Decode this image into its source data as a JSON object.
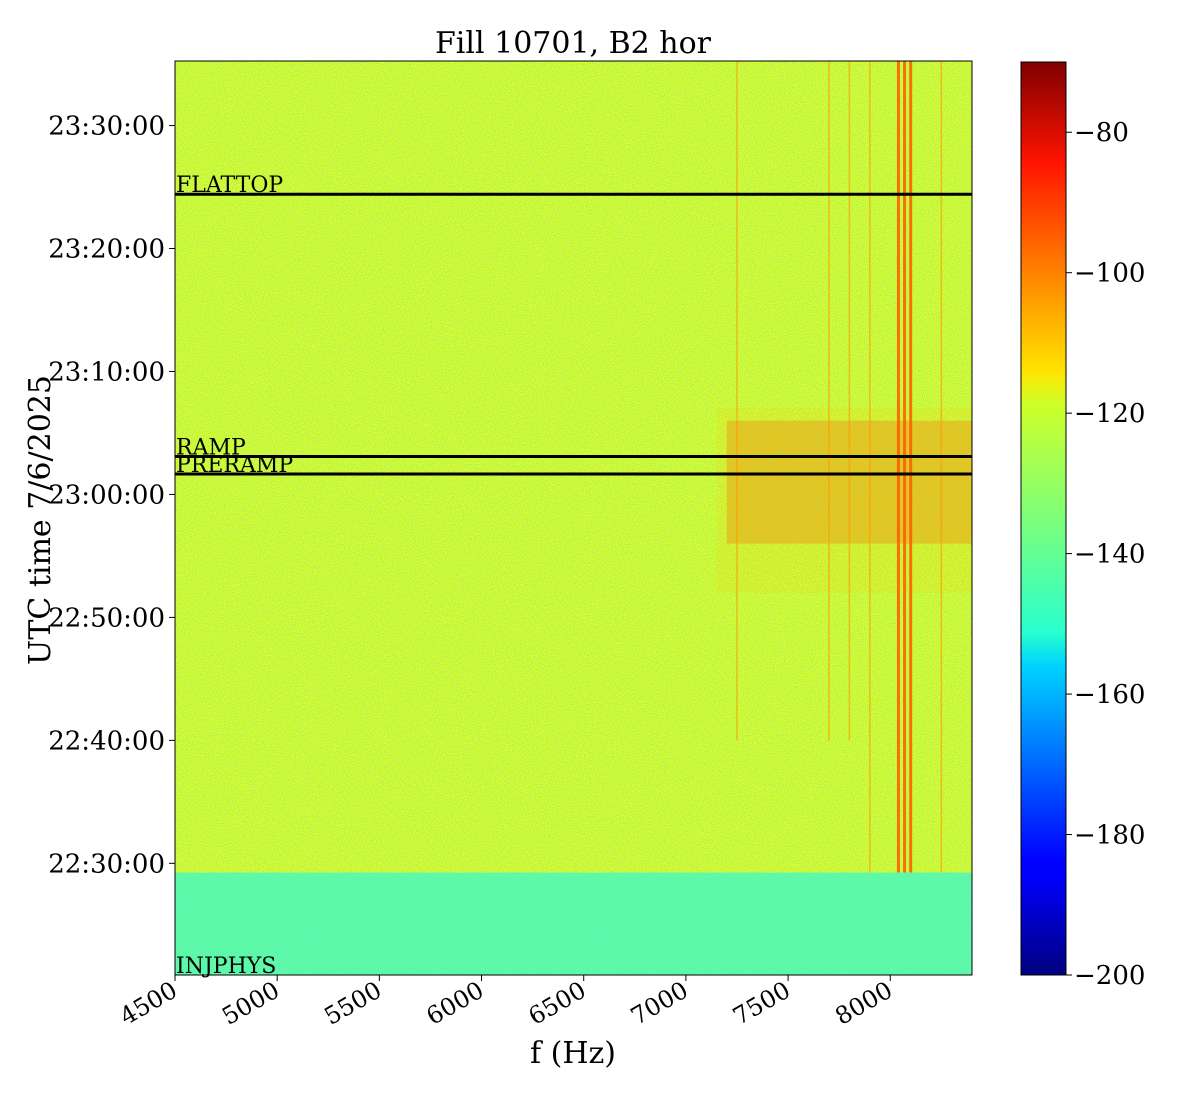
{
  "chart_data": {
    "type": "heatmap",
    "title": "Fill 10701, B2 hor",
    "xlabel": "f (Hz)",
    "ylabel": "UTC time 7/6/2025",
    "xlim": [
      4500,
      8400
    ],
    "ylim_time": [
      "22:20:55",
      "23:35:15"
    ],
    "x_ticks": [
      4500,
      5000,
      5500,
      6000,
      6500,
      7000,
      7500,
      8000
    ],
    "x_tick_labels": [
      "4500",
      "5000",
      "5500",
      "6000",
      "6500",
      "7000",
      "7500",
      "8000"
    ],
    "y_ticks": [
      "22:30:00",
      "22:40:00",
      "22:50:00",
      "23:00:00",
      "23:10:00",
      "23:20:00",
      "23:30:00"
    ],
    "colorbar": {
      "colormap": "jet",
      "range": [
        -200,
        -70
      ],
      "ticks": [
        -200,
        -180,
        -160,
        -140,
        -120,
        -100,
        -80
      ],
      "tick_labels": [
        "−200",
        "−180",
        "−160",
        "−140",
        "−120",
        "−100",
        "−80"
      ]
    },
    "phase_markers": [
      {
        "label": "INJPHYS",
        "time": "22:20:55"
      },
      {
        "label": "PRERAMP",
        "time": "23:01:40"
      },
      {
        "label": "RAMP",
        "time": "23:03:05"
      },
      {
        "label": "FLATTOP",
        "time": "23:24:25"
      }
    ],
    "intensity_regions": [
      {
        "region": "before INJPHYS +8 min",
        "time_range": [
          "22:20:55",
          "22:29:15"
        ],
        "level_db": -140
      },
      {
        "region": "main body",
        "time_range": [
          "22:29:15",
          "23:35:15"
        ],
        "level_db": -122
      },
      {
        "region": "broadband high-f patch",
        "freq_range": [
          7200,
          8400
        ],
        "time_range": [
          "22:56:00",
          "23:06:00"
        ],
        "level_db": -108
      }
    ],
    "vertical_lines_hz": [
      7250,
      7700,
      7800,
      7900,
      8040,
      8070,
      8100,
      8250
    ],
    "grid": false
  }
}
